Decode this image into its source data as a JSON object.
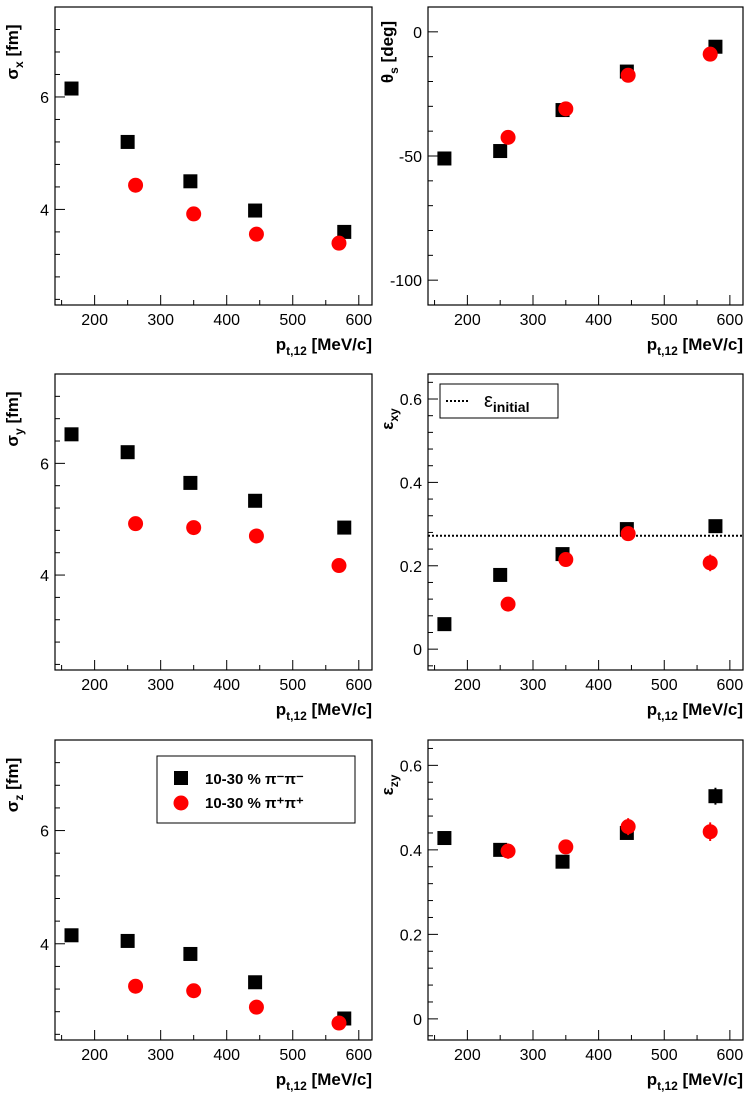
{
  "figure": {
    "legend_labels": [
      "10-30 %  π⁻π⁻",
      "10-30 %  π⁺π⁺"
    ],
    "series_colors": {
      "pi_minus": "#000000",
      "pi_plus": "#ff0000"
    }
  },
  "chart_data": [
    {
      "id": "sigma_x",
      "type": "scatter",
      "ylabel": "σx [fm]",
      "xlabel": "pt,12 [MeV/c]",
      "xlim": [
        140,
        620
      ],
      "ylim": [
        2.3,
        7.6
      ],
      "xticks": [
        200,
        300,
        400,
        500,
        600
      ],
      "yticks": [
        4,
        6
      ],
      "series": [
        {
          "name": "10-30 % π⁻π⁻",
          "marker": "square",
          "color": "#000000",
          "x": [
            165,
            250,
            345,
            443,
            578
          ],
          "y": [
            6.15,
            5.2,
            4.5,
            3.98,
            3.6
          ],
          "err": [
            0,
            0,
            0,
            0,
            0
          ]
        },
        {
          "name": "10-30 % π⁺π⁺",
          "marker": "circle",
          "color": "#ff0000",
          "x": [
            262,
            350,
            445,
            570
          ],
          "y": [
            4.43,
            3.92,
            3.56,
            3.4
          ],
          "err": [
            0,
            0,
            0,
            0
          ]
        }
      ]
    },
    {
      "id": "theta_s",
      "type": "scatter",
      "ylabel": "θs [deg]",
      "xlabel": "pt,12 [MeV/c]",
      "xlim": [
        140,
        620
      ],
      "ylim": [
        -110,
        10
      ],
      "xticks": [
        200,
        300,
        400,
        500,
        600
      ],
      "yticks": [
        0,
        -50,
        -100
      ],
      "series": [
        {
          "name": "10-30 % π⁻π⁻",
          "marker": "square",
          "color": "#000000",
          "x": [
            165,
            250,
            345,
            443,
            578
          ],
          "y": [
            -51,
            -48,
            -31.5,
            -16,
            -6
          ],
          "err": [
            0,
            0,
            0,
            0,
            0
          ]
        },
        {
          "name": "10-30 % π⁺π⁺",
          "marker": "circle",
          "color": "#ff0000",
          "x": [
            262,
            350,
            445,
            570
          ],
          "y": [
            -42.5,
            -31,
            -17.5,
            -9
          ],
          "err": [
            0,
            0,
            0,
            0
          ]
        }
      ]
    },
    {
      "id": "sigma_y",
      "type": "scatter",
      "ylabel": "σy [fm]",
      "xlabel": "pt,12 [MeV/c]",
      "xlim": [
        140,
        620
      ],
      "ylim": [
        2.3,
        7.6
      ],
      "xticks": [
        200,
        300,
        400,
        500,
        600
      ],
      "yticks": [
        4,
        6
      ],
      "series": [
        {
          "name": "10-30 % π⁻π⁻",
          "marker": "square",
          "color": "#000000",
          "x": [
            165,
            250,
            345,
            443,
            578
          ],
          "y": [
            6.52,
            6.2,
            5.65,
            5.33,
            4.85
          ],
          "err": [
            0,
            0,
            0,
            0,
            0
          ]
        },
        {
          "name": "10-30 % π⁺π⁺",
          "marker": "circle",
          "color": "#ff0000",
          "x": [
            262,
            350,
            445,
            570
          ],
          "y": [
            4.92,
            4.85,
            4.7,
            4.17
          ],
          "err": [
            0,
            0,
            0,
            0
          ]
        }
      ]
    },
    {
      "id": "epsilon_xy",
      "type": "scatter",
      "ylabel": "εxy",
      "xlabel": "pt,12 [MeV/c]",
      "xlim": [
        140,
        620
      ],
      "ylim": [
        -0.05,
        0.66
      ],
      "xticks": [
        200,
        300,
        400,
        500,
        600
      ],
      "yticks": [
        0,
        0.2,
        0.4,
        0.6
      ],
      "reference_line": {
        "label": "ε",
        "sub": "initial",
        "y": 0.272,
        "style": "dotted"
      },
      "series": [
        {
          "name": "10-30 % π⁻π⁻",
          "marker": "square",
          "color": "#000000",
          "x": [
            165,
            250,
            345,
            443,
            578
          ],
          "y": [
            0.06,
            0.178,
            0.228,
            0.288,
            0.295
          ],
          "err": [
            0,
            0,
            0.008,
            0.012,
            0.015
          ]
        },
        {
          "name": "10-30 % π⁺π⁺",
          "marker": "circle",
          "color": "#ff0000",
          "x": [
            262,
            350,
            445,
            570
          ],
          "y": [
            0.108,
            0.215,
            0.277,
            0.207
          ],
          "err": [
            0,
            0,
            0.012,
            0.02
          ]
        }
      ]
    },
    {
      "id": "sigma_z",
      "type": "scatter",
      "ylabel": "σz [fm]",
      "xlabel": "pt,12 [MeV/c]",
      "xlim": [
        140,
        620
      ],
      "ylim": [
        2.3,
        7.6
      ],
      "xticks": [
        200,
        300,
        400,
        500,
        600
      ],
      "yticks": [
        4,
        6
      ],
      "series": [
        {
          "name": "10-30 % π⁻π⁻",
          "marker": "square",
          "color": "#000000",
          "x": [
            165,
            250,
            345,
            443,
            578
          ],
          "y": [
            4.15,
            4.05,
            3.82,
            3.32,
            2.68
          ],
          "err": [
            0,
            0,
            0,
            0,
            0
          ]
        },
        {
          "name": "10-30 % π⁺π⁺",
          "marker": "circle",
          "color": "#ff0000",
          "x": [
            262,
            350,
            445,
            570
          ],
          "y": [
            3.25,
            3.17,
            2.88,
            2.6
          ],
          "err": [
            0,
            0,
            0,
            0
          ]
        }
      ]
    },
    {
      "id": "epsilon_zy",
      "type": "scatter",
      "ylabel": "εzy",
      "xlabel": "pt,12 [MeV/c]",
      "xlim": [
        140,
        620
      ],
      "ylim": [
        -0.05,
        0.66
      ],
      "xticks": [
        200,
        300,
        400,
        500,
        600
      ],
      "yticks": [
        0,
        0.2,
        0.4,
        0.6
      ],
      "series": [
        {
          "name": "10-30 % π⁻π⁻",
          "marker": "square",
          "color": "#000000",
          "x": [
            165,
            250,
            345,
            443,
            578
          ],
          "y": [
            0.428,
            0.4,
            0.372,
            0.44,
            0.527
          ],
          "err": [
            0.012,
            0,
            0,
            0.01,
            0.02
          ]
        },
        {
          "name": "10-30 % π⁺π⁺",
          "marker": "circle",
          "color": "#ff0000",
          "x": [
            262,
            350,
            445,
            570
          ],
          "y": [
            0.397,
            0.407,
            0.455,
            0.443
          ],
          "err": [
            0.018,
            0,
            0.02,
            0.022
          ]
        }
      ]
    }
  ]
}
